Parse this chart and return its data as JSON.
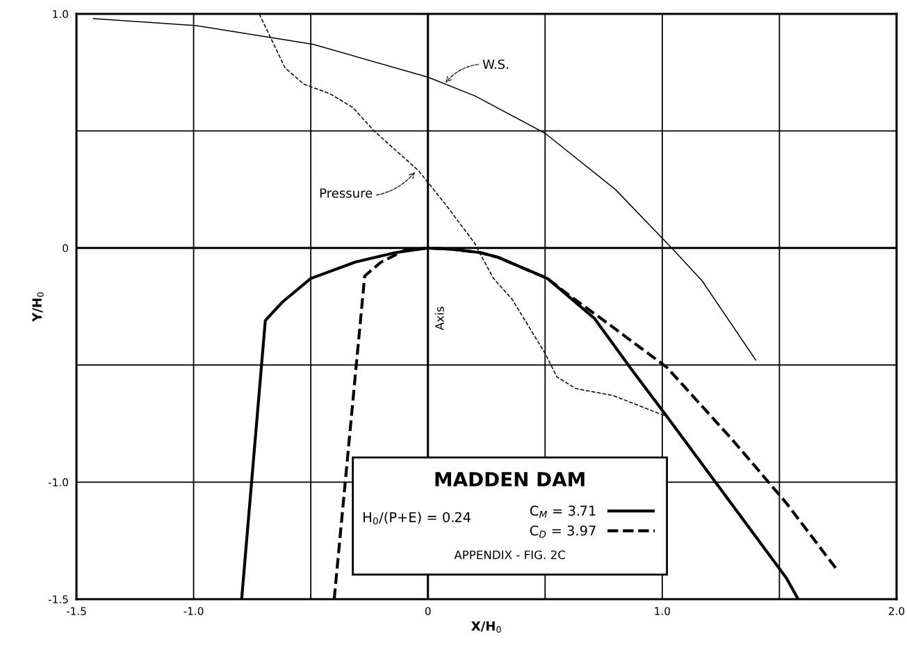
{
  "chart_data": {
    "type": "line",
    "xlabel": "X/H$_{0}$",
    "ylabel": "Y/H$_{0}$",
    "legend_title": "MADDEN DAM",
    "legend": "bottom",
    "grid": true,
    "marker": "none",
    "xlim": [
      -1.5,
      2.0
    ],
    "ylim": [
      -1.5,
      1.0
    ],
    "xticks": [
      {
        "value": -1.5,
        "label": "-1.5"
      },
      {
        "value": -1.0,
        "label": "-1.0"
      },
      {
        "value": -0.5,
        "label": null
      },
      0,
      {
        "value": 0.5,
        "label": null
      },
      {
        "value": 1.0,
        "label": "1.0"
      },
      {
        "value": 1.5,
        "label": null
      },
      {
        "value": 2.0,
        "label": "2.0"
      }
    ],
    "yticks": [
      {
        "value": -1.5,
        "label": "-1.5"
      },
      {
        "value": -1.0,
        "label": "-1.0"
      },
      {
        "value": -0.5,
        "label": null
      },
      0,
      {
        "value": 0.5,
        "label": null
      },
      {
        "value": 1.0,
        "label": "1.0"
      }
    ],
    "series": [
      {
        "color": "#000000",
        "line_style": "solid",
        "x": [
          -1.43,
          -0.99,
          -0.49,
          0.0,
          0.2,
          0.5,
          0.8,
          1.05,
          1.17,
          1.4
        ],
        "values": [
          0.98,
          0.95,
          0.87,
          0.73,
          0.65,
          0.49,
          0.25,
          -0.01,
          -0.14,
          -0.48
        ]
      },
      {
        "color": "#000000",
        "line_style": "dashed",
        "x": [
          -0.72,
          -0.61,
          -0.53,
          -0.42,
          -0.32,
          -0.23,
          -0.04,
          0.08,
          0.2,
          0.22,
          0.28,
          0.36,
          0.5,
          0.55,
          0.63,
          0.79,
          1.02
        ],
        "values": [
          1.0,
          0.77,
          0.7,
          0.66,
          0.6,
          0.5,
          0.33,
          0.18,
          0.02,
          -0.02,
          -0.13,
          -0.22,
          -0.45,
          -0.55,
          -0.6,
          -0.63,
          -0.72
        ]
      },
      {
        "name": "C$_{M}$ = 3.71",
        "color": "#000000",
        "line_style": "solid",
        "x": [
          -0.795,
          -0.694,
          -0.62,
          -0.5,
          -0.31,
          -0.14,
          0.0,
          0.1,
          0.225,
          0.3,
          0.51,
          0.71,
          0.87,
          1.02,
          1.53,
          1.58
        ],
        "values": [
          -1.5,
          -0.31,
          -0.23,
          -0.13,
          -0.06,
          -0.02,
          0.0,
          -0.005,
          -0.02,
          -0.04,
          -0.13,
          -0.3,
          -0.52,
          -0.72,
          -1.41,
          -1.5
        ]
      },
      {
        "name": "C$_{D}$ = 3.97",
        "color": "#000000",
        "line_style": "dashed",
        "x": [
          -0.4,
          -0.27,
          -0.2,
          -0.1,
          0.0,
          0.1,
          0.225,
          0.3,
          0.51,
          0.6,
          0.765,
          1.02,
          1.3,
          1.53,
          1.75
        ],
        "values": [
          -1.5,
          -0.12,
          -0.06,
          -0.01,
          0.0,
          -0.005,
          -0.02,
          -0.04,
          -0.13,
          -0.2,
          -0.32,
          -0.51,
          -0.82,
          -1.09,
          -1.38
        ]
      }
    ],
    "annotations": [
      {
        "text": "W.S.",
        "x": 0.07,
        "y": 0.7
      },
      {
        "text": "Pressure",
        "x": -0.05,
        "y": 0.33
      },
      "Axis",
      "H$_{0}$/(P+E) = 0.24",
      "APPENDIX - FIG. 2C"
    ]
  }
}
